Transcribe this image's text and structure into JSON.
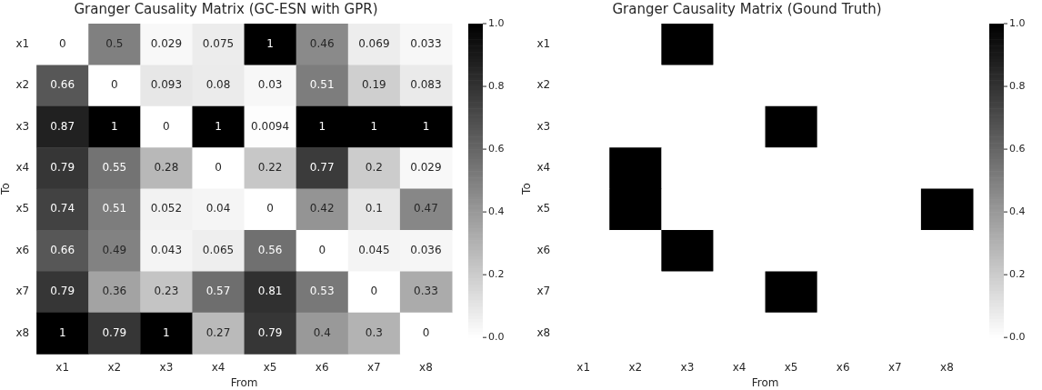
{
  "chart_data": [
    {
      "type": "heatmap",
      "title": "Granger Causality Matrix (GC-ESN with GPR)",
      "xlabel": "From",
      "ylabel": "To",
      "categories": [
        "x1",
        "x2",
        "x3",
        "x4",
        "x5",
        "x6",
        "x7",
        "x8"
      ],
      "y_categories": [
        "x1",
        "x2",
        "x3",
        "x4",
        "x5",
        "x6",
        "x7",
        "x8"
      ],
      "cells": [
        [
          0,
          0.5,
          0.029,
          0.075,
          1,
          0.46,
          0.069,
          0.033
        ],
        [
          0.66,
          0,
          0.093,
          0.08,
          0.03,
          0.51,
          0.19,
          0.083
        ],
        [
          0.87,
          1,
          0,
          1,
          0.0094,
          1,
          1,
          1
        ],
        [
          0.79,
          0.55,
          0.28,
          0,
          0.22,
          0.77,
          0.2,
          0.029
        ],
        [
          0.74,
          0.51,
          0.052,
          0.04,
          0,
          0.42,
          0.1,
          0.47
        ],
        [
          0.66,
          0.49,
          0.043,
          0.065,
          0.56,
          0,
          0.045,
          0.036
        ],
        [
          0.79,
          0.36,
          0.23,
          0.57,
          0.81,
          0.53,
          0,
          0.33
        ],
        [
          1,
          0.79,
          1,
          0.27,
          0.79,
          0.4,
          0.3,
          0
        ]
      ],
      "data_labels": true,
      "clim": [
        0,
        1
      ],
      "cticks": [
        {
          "value": 0,
          "label": "0.0"
        },
        {
          "value": 0.2,
          "label": "0.2"
        },
        {
          "value": 0.4,
          "label": "0.4"
        },
        {
          "value": 0.6,
          "label": "0.6"
        },
        {
          "value": 0.8,
          "label": "0.8"
        },
        {
          "value": 1,
          "label": "1.0"
        }
      ]
    },
    {
      "type": "heatmap",
      "title": "Granger Causality Matrix (Gound Truth)",
      "xlabel": "From",
      "ylabel": "To",
      "categories": [
        "x1",
        "x2",
        "x3",
        "x4",
        "x5",
        "x6",
        "x7",
        "x8"
      ],
      "y_categories": [
        "x1",
        "x2",
        "x3",
        "x4",
        "x5",
        "x6",
        "x7",
        "x8"
      ],
      "cells": [
        [
          0,
          0,
          1,
          0,
          0,
          0,
          0,
          0
        ],
        [
          0,
          0,
          0,
          0,
          0,
          0,
          0,
          0
        ],
        [
          0,
          0,
          0,
          0,
          1,
          0,
          0,
          0
        ],
        [
          0,
          1,
          0,
          0,
          0,
          0,
          0,
          0
        ],
        [
          0,
          1,
          0,
          0,
          0,
          0,
          0,
          1
        ],
        [
          0,
          0,
          1,
          0,
          0,
          0,
          0,
          0
        ],
        [
          0,
          0,
          0,
          0,
          1,
          0,
          0,
          0
        ],
        [
          0,
          0,
          0,
          0,
          0,
          0,
          0,
          0
        ]
      ],
      "clim": [
        0,
        1
      ],
      "cticks": [
        {
          "value": 0,
          "label": "0.0"
        },
        {
          "value": 0.2,
          "label": "0.2"
        },
        {
          "value": 0.4,
          "label": "0.4"
        },
        {
          "value": 0.6,
          "label": "0.6"
        },
        {
          "value": 0.8,
          "label": "0.8"
        },
        {
          "value": 1,
          "label": "1.0"
        }
      ]
    }
  ]
}
